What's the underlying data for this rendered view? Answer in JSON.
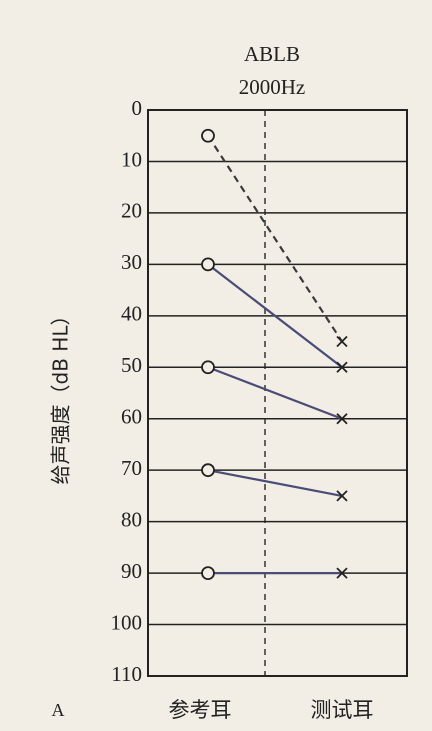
{
  "chart_data": {
    "type": "line",
    "title": "ABLB",
    "subtitle": "2000Hz",
    "y_label": "给声强度（dB HL）",
    "panel_label": "A",
    "categories": [
      "参考耳",
      "测试耳"
    ],
    "series": [
      {
        "color": "#3a3a3a",
        "dashed": true,
        "values": [
          5,
          45
        ]
      },
      {
        "color": "#4b4b78",
        "dashed": false,
        "values": [
          30,
          50
        ]
      },
      {
        "color": "#4b4b78",
        "dashed": false,
        "values": [
          50,
          60
        ]
      },
      {
        "color": "#4b4b78",
        "dashed": false,
        "values": [
          70,
          75
        ]
      },
      {
        "color": "#4b4b78",
        "dashed": false,
        "values": [
          90,
          90
        ]
      }
    ],
    "ylim": [
      0,
      110
    ],
    "y_inverted": true,
    "yticks": [
      0,
      10,
      20,
      30,
      40,
      50,
      60,
      70,
      80,
      90,
      100,
      110
    ],
    "grid": true
  }
}
